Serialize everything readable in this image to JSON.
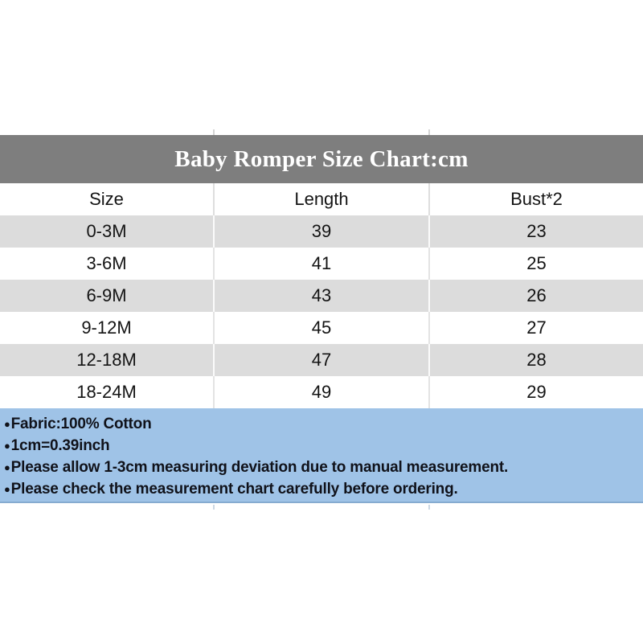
{
  "title": "Baby Romper Size Chart:cm",
  "table": {
    "columns": [
      "Size",
      "Length",
      "Bust*2"
    ],
    "rows": [
      {
        "size": "0-3M",
        "length": "39",
        "bust": "23"
      },
      {
        "size": "3-6M",
        "length": "41",
        "bust": "25"
      },
      {
        "size": "6-9M",
        "length": "43",
        "bust": "26"
      },
      {
        "size": "9-12M",
        "length": "45",
        "bust": "27"
      },
      {
        "size": "12-18M",
        "length": "47",
        "bust": "28"
      },
      {
        "size": "18-24M",
        "length": "49",
        "bust": "29"
      }
    ]
  },
  "notes": {
    "bullet": "●",
    "items": [
      "Fabric:100% Cotton",
      "1cm=0.39inch",
      "Please allow 1-3cm measuring deviation due to manual measurement.",
      "Please check the measurement chart carefully before ordering."
    ]
  },
  "colors": {
    "title_band": "#7e7e7e",
    "title_text": "#ffffff",
    "row_alt": "#dcdcdc",
    "row_base": "#ffffff",
    "notes_bg": "#9fc3e7",
    "notes_border": "#86abd0",
    "text": "#141414"
  },
  "chart_data": {
    "type": "table",
    "title": "Baby Romper Size Chart:cm",
    "unit": "cm",
    "columns": [
      "Size",
      "Length",
      "Bust*2"
    ],
    "categories": [
      "0-3M",
      "3-6M",
      "6-9M",
      "9-12M",
      "12-18M",
      "18-24M"
    ],
    "series": [
      {
        "name": "Length",
        "values": [
          39,
          41,
          43,
          45,
          47,
          49
        ]
      },
      {
        "name": "Bust*2",
        "values": [
          23,
          25,
          26,
          27,
          28,
          29
        ]
      }
    ],
    "annotations": [
      "Fabric:100% Cotton",
      "1cm=0.39inch",
      "Please allow 1-3cm measuring deviation due to manual measurement.",
      "Please check the measurement chart carefully before ordering."
    ]
  }
}
